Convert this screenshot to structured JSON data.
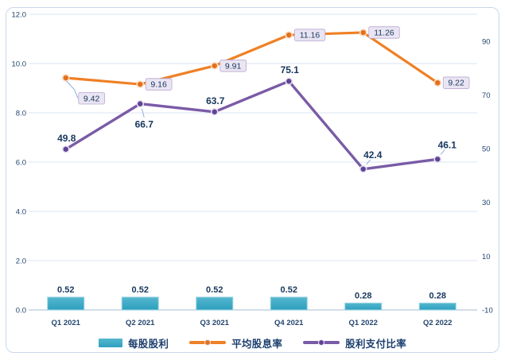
{
  "chart_data": {
    "type": "combo",
    "title": "",
    "categories": [
      "Q1 2021",
      "Q2 2021",
      "Q3 2021",
      "Q4 2021",
      "Q1 2022",
      "Q2 2022"
    ],
    "series": [
      {
        "name": "每股股利",
        "type": "bar",
        "axis": "left",
        "color": "#2d9fbf",
        "color_light": "#55b8cf",
        "edge_color": "#9ad4e0",
        "values": [
          0.52,
          0.52,
          0.52,
          0.52,
          0.28,
          0.28
        ],
        "labels": [
          "0.52",
          "0.52",
          "0.52",
          "0.52",
          "0.28",
          "0.28"
        ],
        "label_style": "bold"
      },
      {
        "name": "平均股息率",
        "type": "line",
        "axis": "left",
        "color": "#ef8025",
        "marker_color": "#e56f1b",
        "marker_ring": "#f9dcc4",
        "values": [
          9.42,
          9.16,
          9.91,
          11.16,
          11.26,
          9.22
        ],
        "labels": [
          "9.42",
          "9.16",
          "9.91",
          "11.16",
          "11.26",
          "9.22"
        ],
        "label_style": "boxed",
        "label_positions": [
          "leader-below",
          "right",
          "right",
          "right",
          "right",
          "right"
        ]
      },
      {
        "name": "股利支付比率",
        "type": "line",
        "axis": "right",
        "color": "#7a5ba6",
        "marker_color": "#5f4397",
        "marker_ring": "#e4e0ef",
        "values": [
          49.8,
          66.7,
          63.7,
          75.1,
          42.4,
          46.1
        ],
        "labels": [
          "49.8",
          "66.7",
          "63.7",
          "75.1",
          "42.4",
          "46.1"
        ],
        "label_style": "bold",
        "label_positions": [
          "above",
          "leader-below",
          "above",
          "above",
          "leader-above",
          "leader-above"
        ]
      }
    ],
    "left_axis": {
      "min": 0,
      "max": 12,
      "step": 2,
      "tick_labels": [
        "0.0",
        "2.0",
        "4.0",
        "6.0",
        "8.0",
        "10.0",
        "12.0"
      ]
    },
    "right_axis": {
      "min": -10,
      "max": 100,
      "step": 20,
      "tick_labels": [
        "-10",
        "10",
        "30",
        "50",
        "70",
        "90"
      ]
    },
    "grid": true,
    "legend_position": "bottom"
  },
  "styles": {
    "grid_color": "#dbe5f1",
    "axis_line_color": "#b9c9de",
    "tick_label_color": "#24466e",
    "data_label_color": "#17375e",
    "label_box_fill": "#eae5f3",
    "label_box_border": "#b9a7d2",
    "leader_color": "#8eaede",
    "frame_border": "#c9d7ea",
    "background": "#ffffff"
  }
}
